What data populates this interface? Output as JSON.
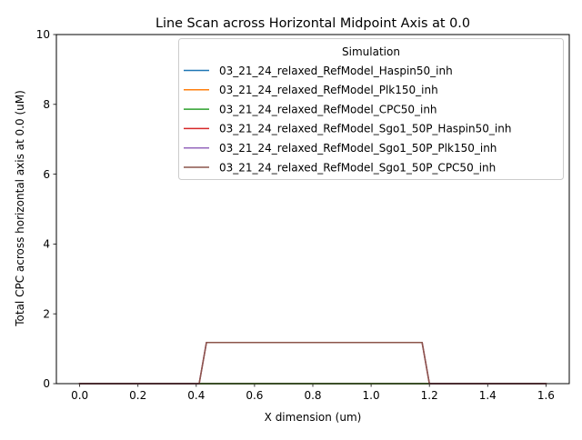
{
  "chart_data": {
    "type": "line",
    "title": "Line Scan across Horizontal Midpoint Axis at 0.0",
    "xlabel": "X dimension (um)",
    "ylabel": "Total CPC across horizontal axis at 0.0 (uM)",
    "xlim": [
      -0.08,
      1.68
    ],
    "ylim": [
      0,
      10
    ],
    "xticks": [
      0.0,
      0.2,
      0.4,
      0.6,
      0.8,
      1.0,
      1.2,
      1.4,
      1.6
    ],
    "xtick_labels": [
      "0.0",
      "0.2",
      "0.4",
      "0.6",
      "0.8",
      "1.0",
      "1.2",
      "1.4",
      "1.6"
    ],
    "yticks": [
      0,
      2,
      4,
      6,
      8,
      10
    ],
    "ytick_labels": [
      "0",
      "2",
      "4",
      "6",
      "8",
      "10"
    ],
    "grid": false,
    "legend": {
      "title": "Simulation",
      "placement": "upper-right"
    },
    "series": [
      {
        "name": "03_21_24_relaxed_RefModel_Haspin50_inh",
        "color": "#1f77b4",
        "x": [
          0.0,
          0.4,
          1.2,
          1.6
        ],
        "y": [
          0,
          0,
          0,
          0
        ]
      },
      {
        "name": "03_21_24_relaxed_RefModel_Plk150_inh",
        "color": "#ff7f0e",
        "x": [
          0.0,
          0.4,
          1.2,
          1.6
        ],
        "y": [
          0,
          0,
          0,
          0
        ]
      },
      {
        "name": "03_21_24_relaxed_RefModel_CPC50_inh",
        "color": "#2ca02c",
        "x": [
          0.0,
          0.4,
          1.2,
          1.6
        ],
        "y": [
          0,
          0,
          0,
          0
        ]
      },
      {
        "name": "03_21_24_relaxed_RefModel_Sgo1_50P_Haspin50_inh",
        "color": "#d62728",
        "x": [
          0.0,
          0.41,
          0.435,
          1.175,
          1.2,
          1.6
        ],
        "y": [
          0,
          0,
          1.18,
          1.18,
          0,
          0
        ]
      },
      {
        "name": "03_21_24_relaxed_RefModel_Sgo1_50P_Plk150_inh",
        "color": "#9467bd",
        "x": [
          0.0,
          0.41,
          0.435,
          1.175,
          1.2,
          1.6
        ],
        "y": [
          0,
          0,
          1.18,
          1.18,
          0,
          0
        ]
      },
      {
        "name": "03_21_24_relaxed_RefModel_Sgo1_50P_CPC50_inh",
        "color": "#8c564b",
        "x": [
          0.0,
          0.41,
          0.435,
          1.175,
          1.2,
          1.6
        ],
        "y": [
          0,
          0,
          1.18,
          1.18,
          0,
          0
        ]
      }
    ]
  }
}
